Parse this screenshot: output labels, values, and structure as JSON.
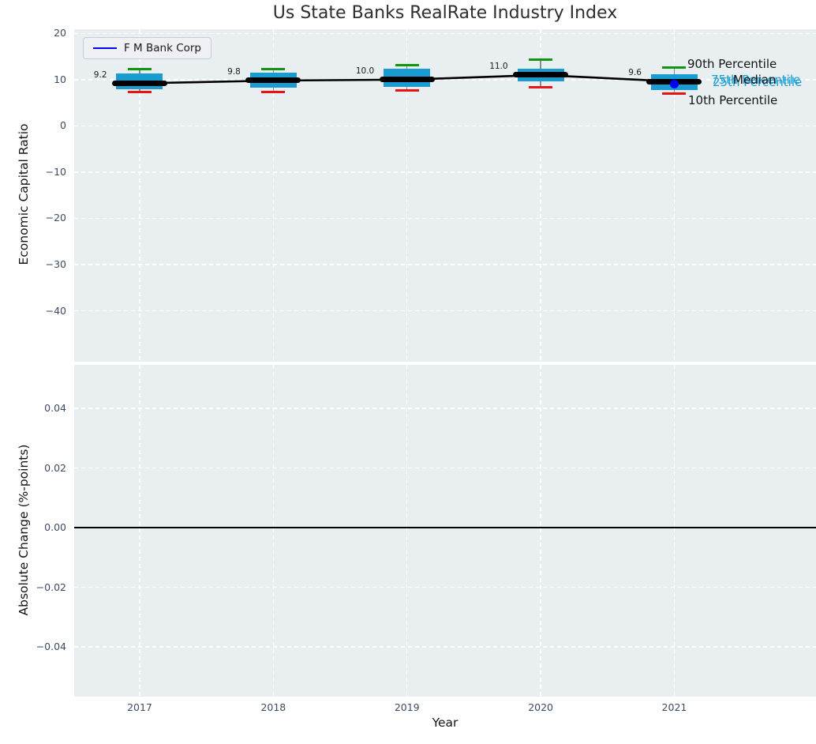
{
  "chart_data": {
    "type": "box",
    "title": "Us State Banks RealRate Industry Index",
    "xlabel": "Year",
    "categories": [
      "2017",
      "2018",
      "2019",
      "2020",
      "2021"
    ],
    "xticks": [
      {
        "v": 2017,
        "label": "2017"
      },
      {
        "v": 2018,
        "label": "2018"
      },
      {
        "v": 2019,
        "label": "2019"
      },
      {
        "v": 2020,
        "label": "2020"
      },
      {
        "v": 2021,
        "label": "2021"
      }
    ],
    "xlim": [
      2016.51,
      2022.06
    ],
    "legend": {
      "label": "F M Bank Corp",
      "color": "#0000ff",
      "position": "upper-left"
    },
    "panels": [
      {
        "ylabel": "Economic Capital Ratio",
        "ylim": [
          -51.0,
          20.9
        ],
        "yticks": [
          {
            "v": 20,
            "label": "20"
          },
          {
            "v": 10,
            "label": "10"
          },
          {
            "v": 0,
            "label": "0"
          },
          {
            "v": -10,
            "label": "−10"
          },
          {
            "v": -20,
            "label": "−20"
          },
          {
            "v": -30,
            "label": "−30"
          },
          {
            "v": -40,
            "label": "−40"
          }
        ],
        "grid": true,
        "percentiles": {
          "p90": [
            12.2,
            12.2,
            13.2,
            14.3,
            12.6
          ],
          "p75": [
            11.4,
            11.5,
            12.4,
            12.4,
            11.2
          ],
          "median": [
            9.2,
            9.8,
            10.0,
            11.0,
            9.6
          ],
          "p25": [
            8.0,
            8.3,
            8.5,
            9.7,
            7.8
          ],
          "p10": [
            7.3,
            7.4,
            7.6,
            8.3,
            6.9
          ]
        },
        "median_labels": [
          "9.2",
          "9.8",
          "10.0",
          "11.0",
          "9.6"
        ],
        "company_point": {
          "name": "F M Bank Corp",
          "year": 2021,
          "value": 9.2
        },
        "annotations": {
          "p90": "90th Percentile",
          "p75": "75th Percentile",
          "median": "Median",
          "p25": "25th Percentile",
          "p10": "10th Percentile"
        }
      },
      {
        "ylabel": "Absolute Change (%-points)",
        "ylim": [
          -0.0567,
          0.0546
        ],
        "yticks": [
          {
            "v": 0.04,
            "label": "0.04"
          },
          {
            "v": 0.02,
            "label": "0.02"
          },
          {
            "v": 0.0,
            "label": "0.00"
          },
          {
            "v": -0.02,
            "label": "−0.02"
          },
          {
            "v": -0.04,
            "label": "−0.04"
          }
        ],
        "grid": true,
        "zero_line": 0.0
      }
    ],
    "colors": {
      "box_fill": "#189cd2",
      "cap_90th": "#129612",
      "cap_10th": "#e81414",
      "median_line": "#000000",
      "company": "#0000ff",
      "axes_bg": "#e9eef0",
      "grid": "#ffffff",
      "tick_text": "#3c4a63",
      "annotation_blue": "#1b9ed6"
    }
  }
}
